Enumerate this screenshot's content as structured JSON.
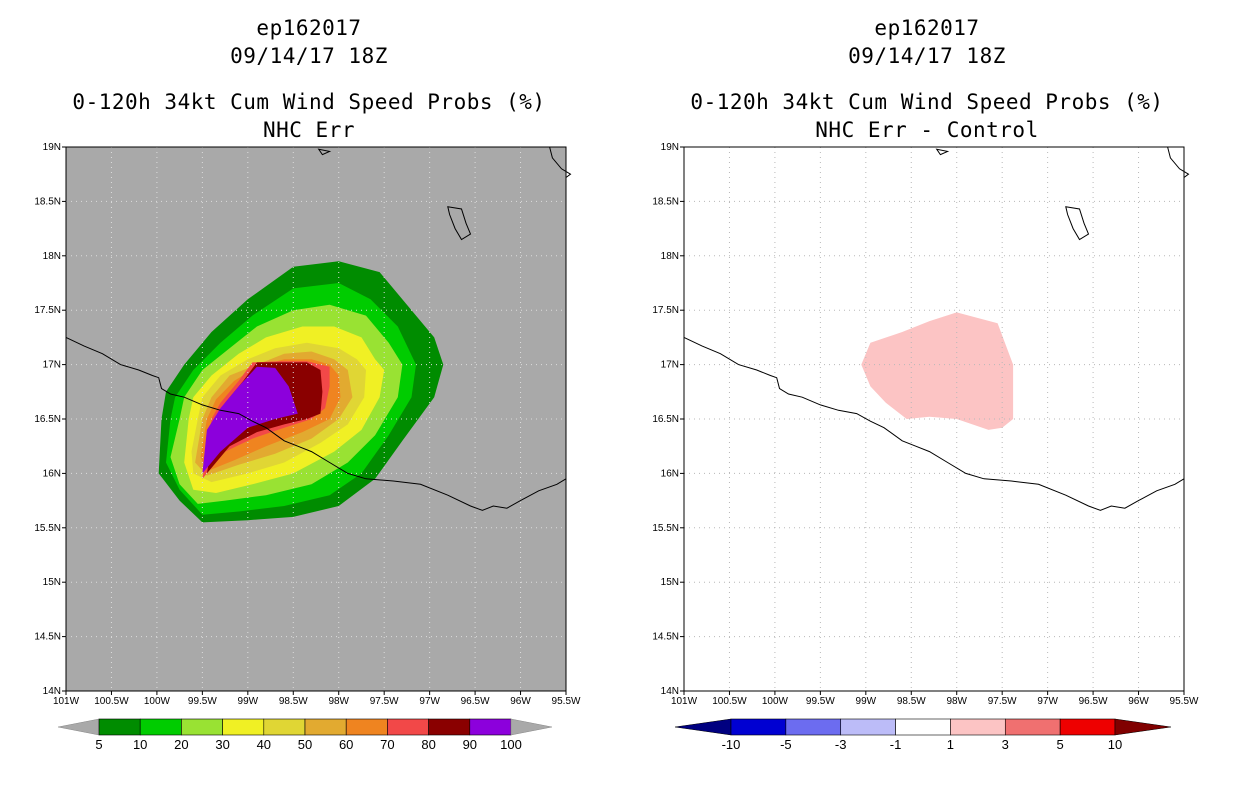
{
  "left": {
    "storm_id": "ep162017",
    "date_time": "09/14/17 18Z",
    "title": "0-120h 34kt Cum Wind Speed Probs (%)",
    "subtitle": "NHC Err",
    "background_color": "#a9a9a9",
    "colorbar": {
      "labels": [
        "5",
        "10",
        "20",
        "30",
        "40",
        "50",
        "60",
        "70",
        "80",
        "90",
        "100"
      ],
      "colors": [
        "#008c00",
        "#00cc00",
        "#99e233",
        "#f0f024",
        "#e0d634",
        "#e2aa30",
        "#ef8420",
        "#f24848",
        "#8a0000",
        "#8c00dc"
      ],
      "under_color": "#a9a9a9",
      "over_color": "#a9a9a9"
    }
  },
  "right": {
    "storm_id": "ep162017",
    "date_time": "09/14/17 18Z",
    "title": "0-120h 34kt Cum Wind Speed Probs (%)",
    "subtitle": "NHC Err - Control",
    "background_color": "#ffffff",
    "colorbar": {
      "labels": [
        "-10",
        "-5",
        "-3",
        "-1",
        "1",
        "3",
        "5",
        "10"
      ],
      "colors": [
        "#0000d2",
        "#6c6cf0",
        "#bcbcf8",
        "#ffffff",
        "#fcc4c4",
        "#f07070",
        "#ee0000"
      ],
      "under_color": "#000080",
      "over_color": "#800000"
    }
  },
  "axes": {
    "lat_labels": [
      "19N",
      "18.5N",
      "18N",
      "17.5N",
      "17N",
      "16.5N",
      "16N",
      "15.5N",
      "15N",
      "14.5N",
      "14N"
    ],
    "lon_labels": [
      "101W",
      "100.5W",
      "100W",
      "99.5W",
      "99W",
      "98.5W",
      "98W",
      "97.5W",
      "97W",
      "96.5W",
      "96W",
      "95.5W"
    ]
  },
  "map_data": {
    "lat_range": [
      14,
      19
    ],
    "lon_range": [
      -101,
      -95.5
    ],
    "coastline": [
      [
        -101,
        17.25
      ],
      [
        -100.8,
        17.17
      ],
      [
        -100.6,
        17.1
      ],
      [
        -100.4,
        17.0
      ],
      [
        -100.2,
        16.95
      ],
      [
        -100.05,
        16.9
      ],
      [
        -99.98,
        16.88
      ],
      [
        -99.95,
        16.78
      ],
      [
        -99.85,
        16.73
      ],
      [
        -99.7,
        16.7
      ],
      [
        -99.5,
        16.63
      ],
      [
        -99.3,
        16.58
      ],
      [
        -99.1,
        16.55
      ],
      [
        -98.95,
        16.48
      ],
      [
        -98.8,
        16.42
      ],
      [
        -98.6,
        16.3
      ],
      [
        -98.45,
        16.25
      ],
      [
        -98.3,
        16.2
      ],
      [
        -98.1,
        16.1
      ],
      [
        -97.9,
        16.0
      ],
      [
        -97.7,
        15.95
      ],
      [
        -97.4,
        15.93
      ],
      [
        -97.1,
        15.9
      ],
      [
        -96.8,
        15.8
      ],
      [
        -96.55,
        15.7
      ],
      [
        -96.42,
        15.66
      ],
      [
        -96.3,
        15.7
      ],
      [
        -96.15,
        15.68
      ],
      [
        -96.0,
        15.75
      ],
      [
        -95.8,
        15.84
      ],
      [
        -95.6,
        15.9
      ],
      [
        -95.5,
        15.95
      ]
    ],
    "island_small": [
      [
        -98.22,
        18.98
      ],
      [
        -98.1,
        18.96
      ],
      [
        -98.18,
        18.93
      ],
      [
        -98.22,
        18.98
      ]
    ],
    "lake_shape": [
      [
        -96.8,
        18.45
      ],
      [
        -96.65,
        18.43
      ],
      [
        -96.6,
        18.3
      ],
      [
        -96.55,
        18.2
      ],
      [
        -96.65,
        18.15
      ],
      [
        -96.72,
        18.25
      ],
      [
        -96.78,
        18.38
      ],
      [
        -96.8,
        18.45
      ]
    ],
    "ne_coast": [
      [
        -95.68,
        19.0
      ],
      [
        -95.65,
        18.9
      ],
      [
        -95.55,
        18.8
      ],
      [
        -95.45,
        18.75
      ],
      [
        -95.5,
        18.72
      ]
    ],
    "prob_levels": [
      5,
      10,
      20,
      30,
      40,
      50,
      60,
      70,
      80,
      90
    ],
    "prob_polygons": [
      [
        [
          -99.95,
          16.5
        ],
        [
          -99.9,
          16.75
        ],
        [
          -99.7,
          17.0
        ],
        [
          -99.4,
          17.3
        ],
        [
          -99.0,
          17.6
        ],
        [
          -98.5,
          17.9
        ],
        [
          -98.0,
          17.95
        ],
        [
          -97.55,
          17.85
        ],
        [
          -97.2,
          17.5
        ],
        [
          -96.95,
          17.25
        ],
        [
          -96.85,
          17.0
        ],
        [
          -96.95,
          16.7
        ],
        [
          -97.3,
          16.3
        ],
        [
          -97.6,
          15.95
        ],
        [
          -98.0,
          15.7
        ],
        [
          -98.5,
          15.6
        ],
        [
          -99.0,
          15.57
        ],
        [
          -99.5,
          15.55
        ],
        [
          -99.75,
          15.75
        ],
        [
          -99.98,
          16.0
        ],
        [
          -99.95,
          16.5
        ]
      ],
      [
        [
          -99.85,
          16.5
        ],
        [
          -99.8,
          16.7
        ],
        [
          -99.6,
          16.95
        ],
        [
          -99.3,
          17.2
        ],
        [
          -98.95,
          17.45
        ],
        [
          -98.5,
          17.7
        ],
        [
          -98.0,
          17.75
        ],
        [
          -97.65,
          17.6
        ],
        [
          -97.35,
          17.35
        ],
        [
          -97.15,
          17.0
        ],
        [
          -97.2,
          16.7
        ],
        [
          -97.45,
          16.35
        ],
        [
          -97.75,
          16.0
        ],
        [
          -98.1,
          15.8
        ],
        [
          -98.6,
          15.7
        ],
        [
          -99.1,
          15.65
        ],
        [
          -99.5,
          15.62
        ],
        [
          -99.75,
          15.85
        ],
        [
          -99.9,
          16.1
        ],
        [
          -99.85,
          16.5
        ]
      ],
      [
        [
          -99.75,
          16.5
        ],
        [
          -99.7,
          16.7
        ],
        [
          -99.5,
          16.95
        ],
        [
          -99.2,
          17.15
        ],
        [
          -98.9,
          17.35
        ],
        [
          -98.5,
          17.5
        ],
        [
          -98.1,
          17.55
        ],
        [
          -97.7,
          17.45
        ],
        [
          -97.45,
          17.2
        ],
        [
          -97.3,
          17.0
        ],
        [
          -97.35,
          16.7
        ],
        [
          -97.6,
          16.35
        ],
        [
          -97.9,
          16.1
        ],
        [
          -98.3,
          15.9
        ],
        [
          -98.8,
          15.8
        ],
        [
          -99.25,
          15.75
        ],
        [
          -99.55,
          15.72
        ],
        [
          -99.75,
          15.9
        ],
        [
          -99.85,
          16.15
        ],
        [
          -99.75,
          16.5
        ]
      ],
      [
        [
          -99.65,
          16.5
        ],
        [
          -99.6,
          16.7
        ],
        [
          -99.4,
          16.9
        ],
        [
          -99.1,
          17.1
        ],
        [
          -98.8,
          17.25
        ],
        [
          -98.4,
          17.35
        ],
        [
          -98.05,
          17.35
        ],
        [
          -97.75,
          17.25
        ],
        [
          -97.6,
          17.05
        ],
        [
          -97.5,
          16.95
        ],
        [
          -97.55,
          16.7
        ],
        [
          -97.75,
          16.4
        ],
        [
          -98.05,
          16.2
        ],
        [
          -98.5,
          16.0
        ],
        [
          -98.95,
          15.9
        ],
        [
          -99.35,
          15.82
        ],
        [
          -99.6,
          15.85
        ],
        [
          -99.7,
          16.1
        ],
        [
          -99.65,
          16.5
        ]
      ],
      [
        [
          -99.55,
          16.5
        ],
        [
          -99.5,
          16.7
        ],
        [
          -99.3,
          16.9
        ],
        [
          -99.0,
          17.05
        ],
        [
          -98.7,
          17.15
        ],
        [
          -98.35,
          17.2
        ],
        [
          -98.0,
          17.15
        ],
        [
          -97.8,
          17.05
        ],
        [
          -97.7,
          16.95
        ],
        [
          -97.72,
          16.7
        ],
        [
          -97.9,
          16.45
        ],
        [
          -98.2,
          16.28
        ],
        [
          -98.6,
          16.1
        ],
        [
          -99.0,
          16.0
        ],
        [
          -99.4,
          15.92
        ],
        [
          -99.6,
          16.0
        ],
        [
          -99.62,
          16.2
        ],
        [
          -99.55,
          16.5
        ]
      ],
      [
        [
          -99.5,
          16.5
        ],
        [
          -99.4,
          16.7
        ],
        [
          -99.2,
          16.9
        ],
        [
          -98.9,
          17.0
        ],
        [
          -98.6,
          17.1
        ],
        [
          -98.3,
          17.12
        ],
        [
          -98.05,
          17.05
        ],
        [
          -97.9,
          16.95
        ],
        [
          -97.85,
          16.7
        ],
        [
          -98.0,
          16.5
        ],
        [
          -98.3,
          16.32
        ],
        [
          -98.7,
          16.18
        ],
        [
          -99.1,
          16.08
        ],
        [
          -99.45,
          15.98
        ],
        [
          -99.58,
          16.1
        ],
        [
          -99.5,
          16.5
        ]
      ],
      [
        [
          -99.45,
          16.5
        ],
        [
          -99.35,
          16.68
        ],
        [
          -99.15,
          16.85
        ],
        [
          -98.9,
          16.98
        ],
        [
          -98.6,
          17.05
        ],
        [
          -98.3,
          17.05
        ],
        [
          -98.1,
          17.0
        ],
        [
          -98.0,
          16.9
        ],
        [
          -97.98,
          16.7
        ],
        [
          -98.1,
          16.5
        ],
        [
          -98.4,
          16.38
        ],
        [
          -98.8,
          16.25
        ],
        [
          -99.15,
          16.12
        ],
        [
          -99.45,
          16.02
        ],
        [
          -99.52,
          16.15
        ],
        [
          -99.45,
          16.5
        ]
      ],
      [
        [
          -99.4,
          16.5
        ],
        [
          -99.3,
          16.65
        ],
        [
          -99.1,
          16.85
        ],
        [
          -98.95,
          17.02
        ],
        [
          -98.65,
          17.03
        ],
        [
          -98.35,
          17.03
        ],
        [
          -98.1,
          16.98
        ],
        [
          -98.1,
          16.8
        ],
        [
          -98.15,
          16.6
        ],
        [
          -98.3,
          16.5
        ],
        [
          -98.6,
          16.42
        ],
        [
          -98.95,
          16.32
        ],
        [
          -99.25,
          16.2
        ],
        [
          -99.5,
          15.95
        ],
        [
          -99.45,
          16.2
        ],
        [
          -99.4,
          16.5
        ]
      ],
      [
        [
          -99.35,
          16.5
        ],
        [
          -99.25,
          16.65
        ],
        [
          -99.05,
          16.85
        ],
        [
          -98.9,
          17.02
        ],
        [
          -98.6,
          17.02
        ],
        [
          -98.35,
          17.02
        ],
        [
          -98.2,
          16.95
        ],
        [
          -98.18,
          16.75
        ],
        [
          -98.2,
          16.55
        ],
        [
          -98.35,
          16.5
        ],
        [
          -98.6,
          16.45
        ],
        [
          -98.9,
          16.38
        ],
        [
          -99.2,
          16.25
        ],
        [
          -99.45,
          16.0
        ],
        [
          -99.4,
          16.25
        ],
        [
          -99.35,
          16.5
        ]
      ],
      [
        [
          -99.45,
          16.4
        ],
        [
          -99.3,
          16.6
        ],
        [
          -99.1,
          16.8
        ],
        [
          -98.9,
          16.98
        ],
        [
          -98.7,
          16.97
        ],
        [
          -98.55,
          16.8
        ],
        [
          -98.45,
          16.55
        ],
        [
          -98.7,
          16.5
        ],
        [
          -99.0,
          16.42
        ],
        [
          -99.3,
          16.2
        ],
        [
          -99.5,
          16.0
        ],
        [
          -99.45,
          16.4
        ]
      ]
    ],
    "diff_polygon_color": "#fcc4c4",
    "diff_polygon": [
      [
        -99.05,
        17.0
      ],
      [
        -98.95,
        17.2
      ],
      [
        -98.6,
        17.3
      ],
      [
        -98.3,
        17.4
      ],
      [
        -98.0,
        17.48
      ],
      [
        -97.55,
        17.38
      ],
      [
        -97.38,
        17.0
      ],
      [
        -97.38,
        16.5
      ],
      [
        -97.5,
        16.42
      ],
      [
        -97.65,
        16.4
      ],
      [
        -98.0,
        16.5
      ],
      [
        -98.3,
        16.52
      ],
      [
        -98.55,
        16.5
      ],
      [
        -98.78,
        16.65
      ],
      [
        -98.95,
        16.8
      ],
      [
        -99.05,
        17.0
      ]
    ]
  }
}
